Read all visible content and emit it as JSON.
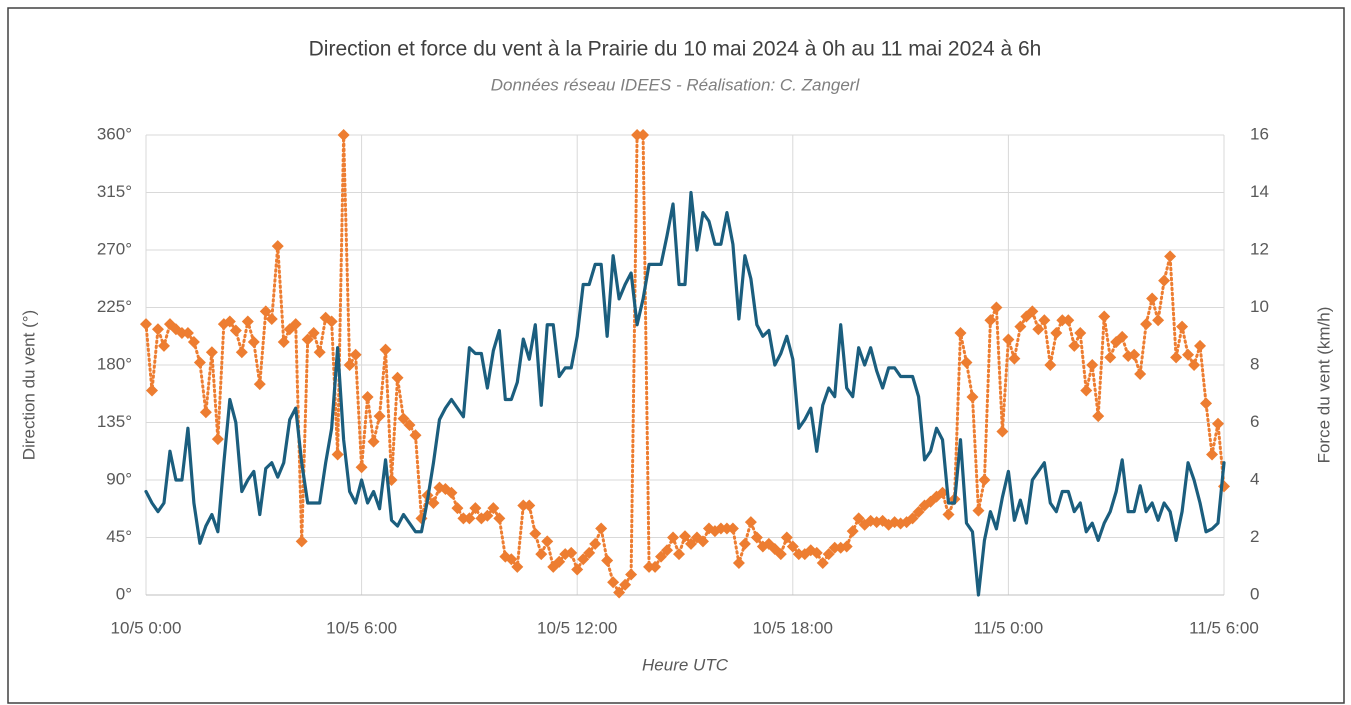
{
  "chart_data": {
    "type": "line",
    "title": "Direction et force du vent à la Prairie du 10 mai 2024 à 0h au 11 mai 2024 à 6h",
    "subtitle": "Données réseau IDEES - Réalisation: C. Zangerl",
    "xlabel": "Heure UTC",
    "ylabel": "Direction du vent (°)",
    "y2label": "Force du vent (km/h)",
    "categories": [
      "10/5 0:00",
      null,
      null,
      null,
      null,
      null,
      null,
      null,
      null,
      null,
      null,
      null,
      null,
      null,
      null,
      null,
      null,
      null,
      null,
      null,
      null,
      null,
      null,
      null,
      null,
      null,
      null,
      null,
      null,
      null,
      null,
      null,
      null,
      null,
      null,
      null,
      "10/5 6:00",
      null,
      null,
      null,
      null,
      null,
      null,
      null,
      null,
      null,
      null,
      null,
      null,
      null,
      null,
      null,
      null,
      null,
      null,
      null,
      null,
      null,
      null,
      null,
      null,
      null,
      null,
      null,
      null,
      null,
      null,
      null,
      null,
      null,
      null,
      null,
      "10/5 12:00",
      null,
      null,
      null,
      null,
      null,
      null,
      null,
      null,
      null,
      null,
      null,
      null,
      null,
      null,
      null,
      null,
      null,
      null,
      null,
      null,
      null,
      null,
      null,
      null,
      null,
      null,
      null,
      null,
      null,
      null,
      null,
      null,
      null,
      null,
      null,
      "10/5 18:00",
      null,
      null,
      null,
      null,
      null,
      null,
      null,
      null,
      null,
      null,
      null,
      null,
      null,
      null,
      null,
      null,
      null,
      null,
      null,
      null,
      null,
      null,
      null,
      null,
      null,
      null,
      null,
      null,
      null,
      null,
      null,
      null,
      null,
      null,
      null,
      "11/5 0:00",
      null,
      null,
      null,
      null,
      null,
      null,
      null,
      null,
      null,
      null,
      null,
      null,
      null,
      null,
      null,
      null,
      null,
      null,
      null,
      null,
      null,
      null,
      null,
      null,
      null,
      null,
      null,
      null,
      null,
      null,
      null,
      null,
      null,
      null,
      null,
      "11/5 6:00"
    ],
    "series": [
      {
        "name": "Direction du vent",
        "color": "#ed7d31",
        "line_style": "dotted",
        "marker": "diamond",
        "values": [
          212,
          160,
          208,
          195,
          212,
          208,
          205,
          205,
          198,
          182,
          143,
          190,
          122,
          212,
          214,
          207,
          190,
          214,
          198,
          165,
          222,
          216,
          273,
          198,
          208,
          212,
          42,
          200,
          205,
          190,
          217,
          214,
          110,
          360,
          180,
          188,
          100,
          155,
          120,
          140,
          192,
          90,
          170,
          138,
          133,
          125,
          60,
          78,
          72,
          84,
          83,
          80,
          68,
          60,
          60,
          68,
          60,
          62,
          68,
          60,
          30,
          28,
          22,
          70,
          70,
          48,
          32,
          42,
          22,
          26,
          32,
          33,
          20,
          28,
          33,
          40,
          52,
          27,
          10,
          2,
          8,
          16,
          360,
          360,
          22,
          22,
          30,
          35,
          45,
          32,
          46,
          40,
          45,
          42,
          52,
          50,
          52,
          52,
          52,
          25,
          40,
          57,
          45,
          38,
          40,
          36,
          32,
          45,
          38,
          32,
          32,
          35,
          33,
          25,
          32,
          37,
          37,
          38,
          50,
          60,
          55,
          58,
          57,
          58,
          55,
          57,
          56,
          57,
          60,
          65,
          70,
          73,
          77,
          80,
          63,
          75,
          205,
          182,
          155,
          66,
          90,
          215,
          225,
          128,
          200,
          185,
          210,
          218,
          222,
          208,
          215,
          180,
          205,
          215,
          215,
          195,
          205,
          160,
          180,
          140,
          218,
          186,
          198,
          202,
          187,
          188,
          173,
          212,
          232,
          215,
          246,
          265,
          186,
          210,
          188,
          180,
          195,
          150,
          110,
          134,
          85
        ]
      },
      {
        "name": "Force du vent",
        "color": "#1b5e7e",
        "line_style": "solid",
        "axis": "y2",
        "values": [
          3.6,
          3.2,
          2.9,
          3.2,
          5.0,
          4.0,
          4.0,
          5.8,
          3.2,
          1.8,
          2.4,
          2.8,
          2.2,
          4.6,
          6.8,
          6.0,
          3.6,
          4.0,
          4.3,
          2.8,
          4.4,
          4.6,
          4.1,
          4.6,
          6.1,
          6.5,
          4.6,
          3.2,
          3.2,
          3.2,
          4.6,
          5.8,
          8.6,
          5.4,
          3.6,
          3.2,
          4.0,
          3.2,
          3.6,
          3.0,
          4.7,
          2.6,
          2.4,
          2.8,
          2.5,
          2.2,
          2.2,
          3.3,
          4.6,
          6.1,
          6.5,
          6.8,
          6.5,
          6.2,
          8.6,
          8.4,
          8.4,
          7.2,
          8.5,
          9.2,
          6.8,
          6.8,
          7.4,
          8.9,
          8.2,
          9.4,
          6.6,
          9.4,
          9.4,
          7.6,
          7.9,
          7.9,
          9.0,
          10.8,
          10.8,
          11.5,
          11.5,
          9.0,
          11.8,
          10.3,
          10.8,
          11.2,
          9.4,
          10.3,
          11.5,
          11.5,
          11.5,
          12.5,
          13.6,
          10.8,
          10.8,
          14.0,
          12.0,
          13.3,
          13.0,
          12.2,
          12.2,
          13.3,
          12.2,
          9.6,
          11.8,
          11.0,
          9.4,
          9.0,
          9.2,
          8.0,
          8.4,
          9.0,
          8.2,
          5.8,
          6.1,
          6.5,
          5.0,
          6.6,
          7.2,
          6.9,
          9.4,
          7.2,
          6.9,
          8.6,
          8.0,
          8.6,
          7.8,
          7.2,
          7.9,
          7.9,
          7.6,
          7.6,
          7.6,
          6.9,
          4.7,
          5.0,
          5.8,
          5.4,
          3.2,
          3.2,
          5.4,
          2.5,
          2.2,
          0.0,
          1.9,
          2.9,
          2.3,
          3.4,
          4.3,
          2.6,
          3.3,
          2.5,
          4.0,
          4.3,
          4.6,
          3.2,
          2.9,
          3.6,
          3.6,
          2.9,
          3.2,
          2.2,
          2.5,
          1.9,
          2.5,
          2.9,
          3.6,
          4.7,
          2.9,
          2.9,
          3.8,
          2.9,
          3.2,
          2.6,
          3.2,
          2.9,
          1.9,
          2.9,
          4.6,
          4.0,
          3.2,
          2.2,
          2.3,
          2.5,
          4.6
        ]
      }
    ],
    "ylim": [
      0,
      360
    ],
    "yticks": [
      {
        "value": 0,
        "label": "0°"
      },
      {
        "value": 45,
        "label": "45°"
      },
      {
        "value": 90,
        "label": "90°"
      },
      {
        "value": 135,
        "label": "135°"
      },
      {
        "value": 180,
        "label": "180°"
      },
      {
        "value": 225,
        "label": "225°"
      },
      {
        "value": 270,
        "label": "270°"
      },
      {
        "value": 315,
        "label": "315°"
      },
      {
        "value": 360,
        "label": "360°"
      }
    ],
    "y2lim": [
      0,
      16
    ],
    "y2ticks": [
      0,
      2,
      4,
      6,
      8,
      10,
      12,
      14,
      16
    ],
    "grid": true
  }
}
